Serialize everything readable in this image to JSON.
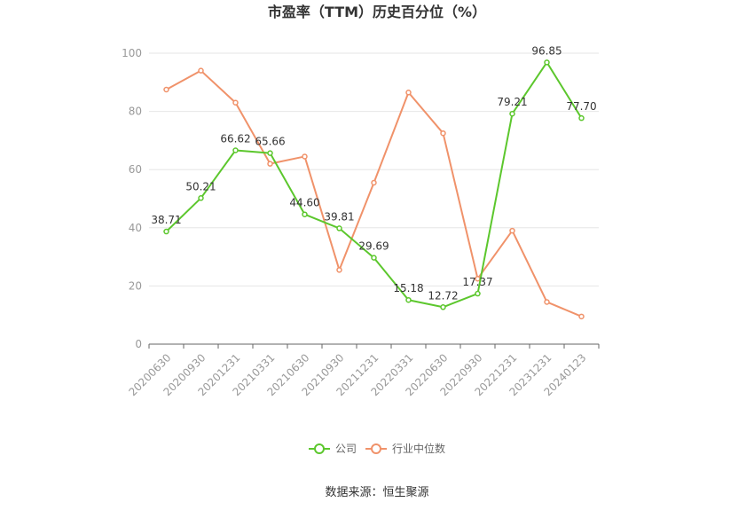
{
  "chart_data": {
    "type": "line",
    "title": "市盈率（TTM）历史百分位（%）",
    "categories": [
      "20200630",
      "20200930",
      "20201231",
      "20210331",
      "20210630",
      "20210930",
      "20211231",
      "20220331",
      "20220630",
      "20220930",
      "20221231",
      "20231231",
      "20240123"
    ],
    "series": [
      {
        "name": "公司",
        "color": "#5cc72d",
        "values": [
          38.71,
          50.21,
          66.62,
          65.66,
          44.6,
          39.81,
          29.69,
          15.18,
          12.72,
          17.37,
          79.21,
          96.85,
          77.7
        ],
        "show_labels": true
      },
      {
        "name": "行业中位数",
        "color": "#f0926a",
        "values": [
          87.5,
          94,
          83,
          62,
          64.5,
          25.5,
          55.5,
          86.5,
          72.5,
          22.5,
          39,
          14.5,
          9.5
        ],
        "show_labels": false
      }
    ],
    "ylim": [
      0,
      100
    ],
    "yticks": [
      0,
      20,
      40,
      60,
      80,
      100
    ],
    "grid": true,
    "legend": "bottom"
  },
  "source": "数据来源：恒生聚源"
}
